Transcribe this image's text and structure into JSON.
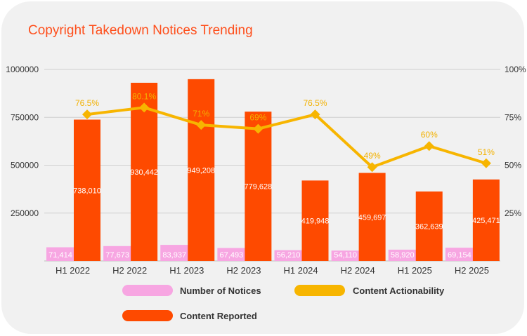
{
  "chart_data": {
    "type": "bar",
    "title": "Copyright Takedown Notices Trending",
    "categories": [
      "H1 2022",
      "H2 2022",
      "H1 2023",
      "H2 2023",
      "H1 2024",
      "H2 2024",
      "H1 2025",
      "H2 2025"
    ],
    "series": [
      {
        "name": "Number of Notices",
        "type": "bar",
        "axis": "left",
        "color": "#f7a6e2",
        "values": [
          71414,
          77673,
          83937,
          67493,
          56210,
          54110,
          58920,
          69154
        ],
        "labels": [
          "71,414",
          "77,673",
          "83,937",
          "67,493",
          "56,210",
          "54,110",
          "58,920",
          "69,154"
        ]
      },
      {
        "name": "Content Reported",
        "type": "bar",
        "axis": "left",
        "color": "#fe4a00",
        "values": [
          738010,
          930442,
          949208,
          779628,
          419948,
          459697,
          362639,
          425471
        ],
        "labels": [
          "738,010",
          "930,442",
          "949,208",
          "779,628",
          "419,948",
          "459,697",
          "362,639",
          "425,471"
        ]
      },
      {
        "name": "Content Actionability",
        "type": "line",
        "axis": "right",
        "color": "#f7b500",
        "values": [
          76.5,
          80.1,
          71,
          69,
          76.5,
          49,
          60,
          51
        ],
        "labels": [
          "76.5%",
          "80.1%",
          "71%",
          "69%",
          "76.5%",
          "49%",
          "60%",
          "51%"
        ]
      }
    ],
    "y_left": {
      "range": [
        0,
        1000000
      ],
      "ticks": [
        1000000,
        750000,
        500000,
        250000
      ],
      "tick_labels": [
        "1000000",
        "750000",
        "500000",
        "250000"
      ]
    },
    "y_right": {
      "range": [
        0,
        100
      ],
      "ticks": [
        100,
        75,
        50,
        25
      ],
      "tick_labels": [
        "100%",
        "75%",
        "50%",
        "25%"
      ]
    },
    "grid": true,
    "legend_position": "bottom"
  }
}
